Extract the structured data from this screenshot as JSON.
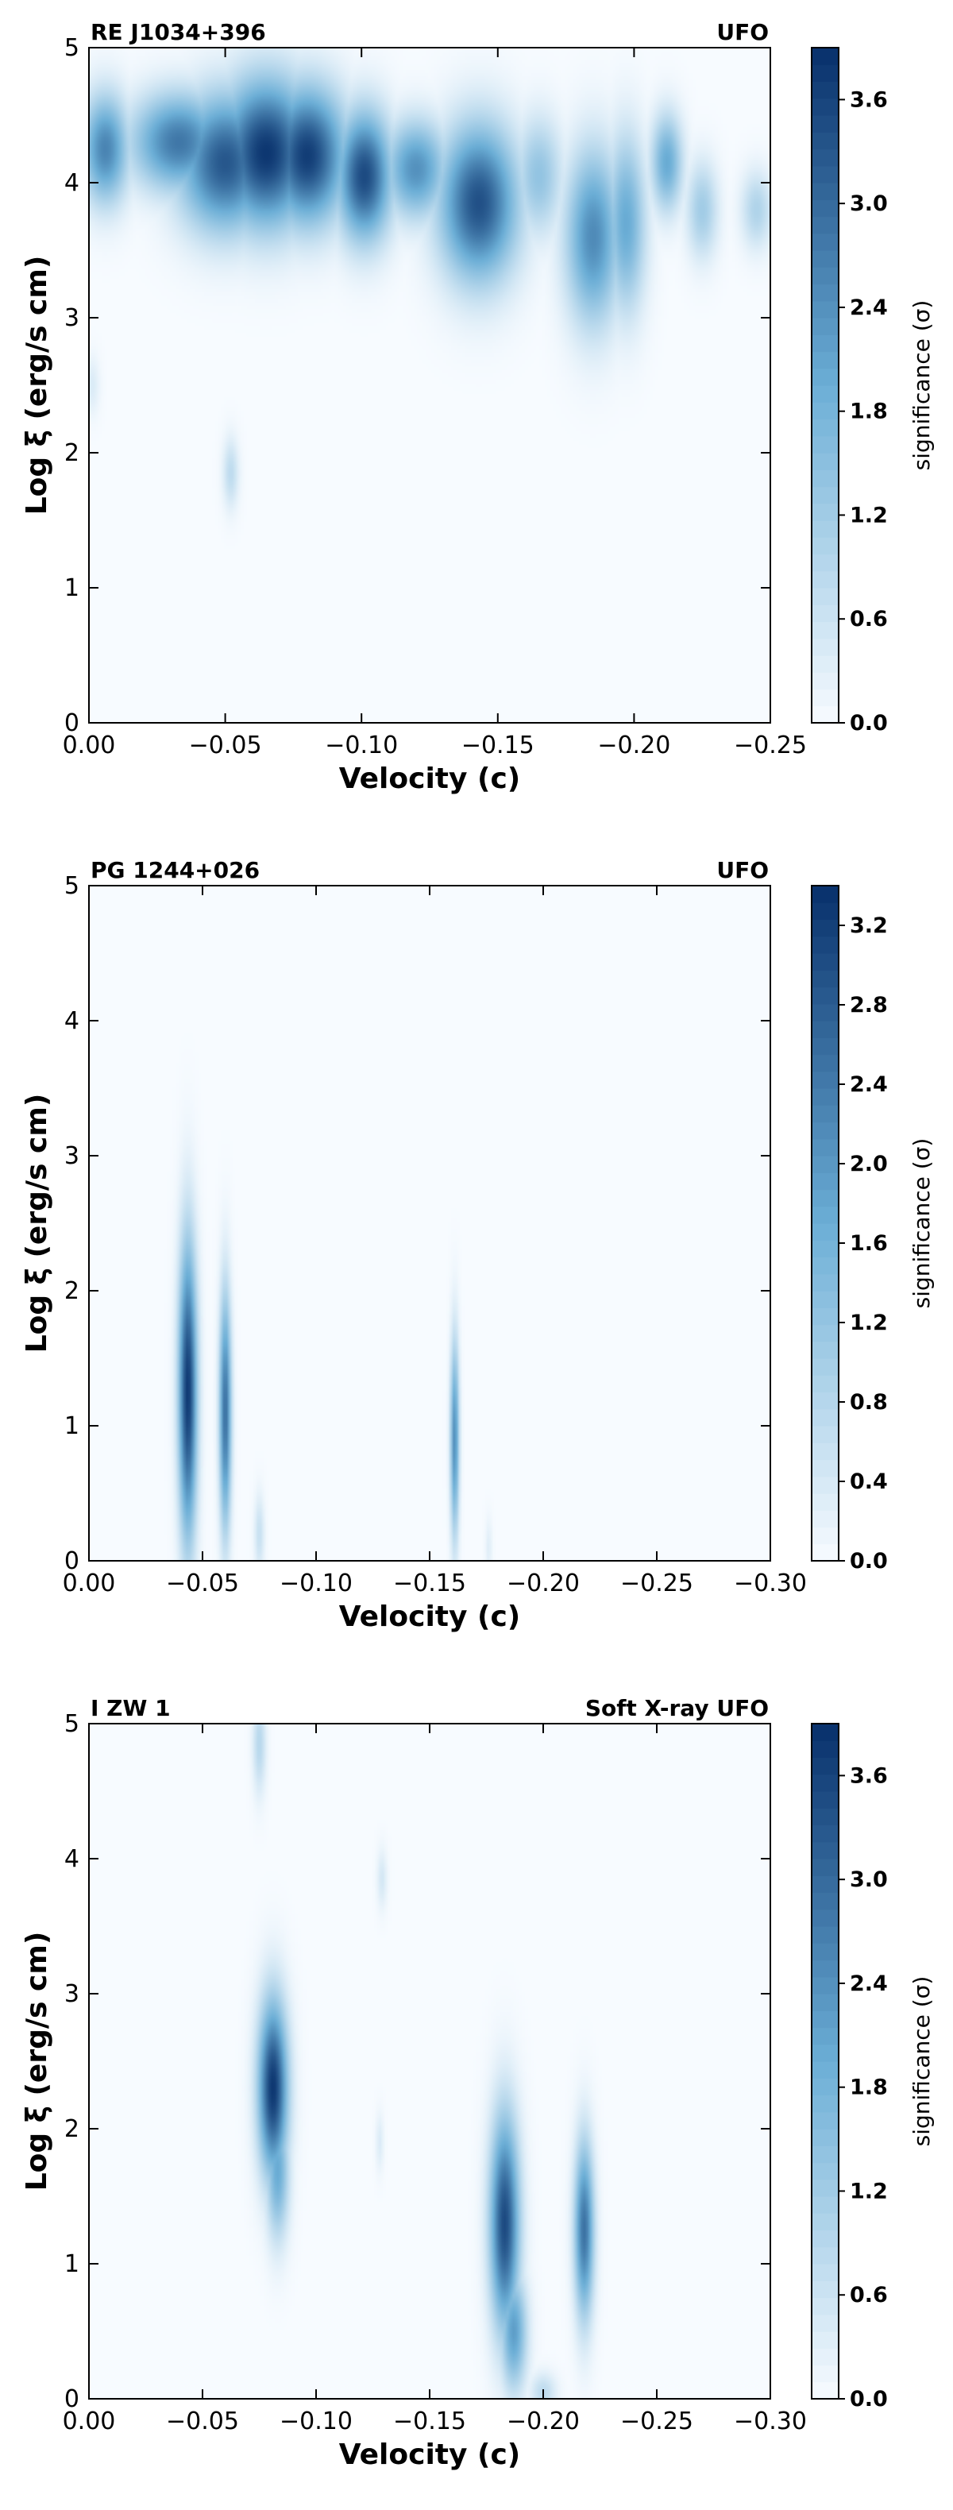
{
  "colormap": {
    "name": "Blues",
    "low_color": "#f7fbff",
    "mid_color": "#6baed6",
    "high_color": "#08306b"
  },
  "chart_data": [
    {
      "type": "heatmap",
      "source_label": "RE J1034+396",
      "class_label": "UFO",
      "xlabel": "Velocity (c)",
      "ylabel": "Log ξ (erg/s cm)",
      "xlim": [
        0.0,
        -0.25
      ],
      "ylim": [
        0,
        5
      ],
      "xticks": [
        0.0,
        -0.05,
        -0.1,
        -0.15,
        -0.2,
        -0.25
      ],
      "xtick_labels": [
        "0.00",
        "−0.05",
        "−0.10",
        "−0.15",
        "−0.20",
        "−0.25"
      ],
      "yticks": [
        0,
        1,
        2,
        3,
        4,
        5
      ],
      "ytick_labels": [
        "0",
        "1",
        "2",
        "3",
        "4",
        "5"
      ],
      "colorbar": {
        "label": "significance (σ)",
        "min": 0.0,
        "max": 3.9,
        "ticks": [
          0.0,
          0.6,
          1.2,
          1.8,
          2.4,
          3.0,
          3.6
        ],
        "tick_labels": [
          "0.0",
          "0.6",
          "1.2",
          "1.8",
          "2.4",
          "3.0",
          "3.6"
        ]
      },
      "features": [
        {
          "v": -0.006,
          "logxi": 4.25,
          "sv": 0.006,
          "sx": 0.28,
          "sig": 2.6
        },
        {
          "v": -0.033,
          "logxi": 4.3,
          "sv": 0.012,
          "sx": 0.25,
          "sig": 2.8
        },
        {
          "v": -0.05,
          "logxi": 4.15,
          "sv": 0.012,
          "sx": 0.35,
          "sig": 3.3
        },
        {
          "v": -0.065,
          "logxi": 4.22,
          "sv": 0.012,
          "sx": 0.38,
          "sig": 3.8
        },
        {
          "v": -0.08,
          "logxi": 4.2,
          "sv": 0.01,
          "sx": 0.35,
          "sig": 3.7
        },
        {
          "v": -0.101,
          "logxi": 4.05,
          "sv": 0.007,
          "sx": 0.33,
          "sig": 3.5
        },
        {
          "v": -0.12,
          "logxi": 4.1,
          "sv": 0.008,
          "sx": 0.25,
          "sig": 2.4
        },
        {
          "v": -0.143,
          "logxi": 3.85,
          "sv": 0.01,
          "sx": 0.4,
          "sig": 3.4
        },
        {
          "v": -0.165,
          "logxi": 4.05,
          "sv": 0.006,
          "sx": 0.3,
          "sig": 1.4
        },
        {
          "v": -0.185,
          "logxi": 3.6,
          "sv": 0.007,
          "sx": 0.45,
          "sig": 2.5
        },
        {
          "v": -0.197,
          "logxi": 3.7,
          "sv": 0.005,
          "sx": 0.45,
          "sig": 2.0
        },
        {
          "v": -0.212,
          "logxi": 4.15,
          "sv": 0.004,
          "sx": 0.25,
          "sig": 2.0
        },
        {
          "v": -0.225,
          "logxi": 3.8,
          "sv": 0.004,
          "sx": 0.25,
          "sig": 1.2
        },
        {
          "v": -0.245,
          "logxi": 3.8,
          "sv": 0.004,
          "sx": 0.2,
          "sig": 1.0
        },
        {
          "v": -0.052,
          "logxi": 1.85,
          "sv": 0.002,
          "sx": 0.18,
          "sig": 0.8
        },
        {
          "v": -0.001,
          "logxi": 2.5,
          "sv": 0.002,
          "sx": 0.15,
          "sig": 0.4
        }
      ]
    },
    {
      "type": "heatmap",
      "source_label": "PG 1244+026",
      "class_label": "UFO",
      "xlabel": "Velocity (c)",
      "ylabel": "Log ξ (erg/s cm)",
      "xlim": [
        0.0,
        -0.3
      ],
      "ylim": [
        0,
        5
      ],
      "xticks": [
        0.0,
        -0.05,
        -0.1,
        -0.15,
        -0.2,
        -0.25,
        -0.3
      ],
      "xtick_labels": [
        "0.00",
        "−0.05",
        "−0.10",
        "−0.15",
        "−0.20",
        "−0.25",
        "−0.30"
      ],
      "yticks": [
        0,
        1,
        2,
        3,
        4,
        5
      ],
      "ytick_labels": [
        "0",
        "1",
        "2",
        "3",
        "4",
        "5"
      ],
      "colorbar": {
        "label": "significance (σ)",
        "min": 0.0,
        "max": 3.4,
        "ticks": [
          0.0,
          0.4,
          0.8,
          1.2,
          1.6,
          2.0,
          2.4,
          2.8,
          3.2
        ],
        "tick_labels": [
          "0.0",
          "0.4",
          "0.8",
          "1.2",
          "1.6",
          "2.0",
          "2.4",
          "2.8",
          "3.2"
        ]
      },
      "features": [
        {
          "v": -0.0435,
          "logxi": 1.25,
          "sv": 0.0028,
          "sx": 0.75,
          "sig": 3.3
        },
        {
          "v": -0.06,
          "logxi": 1.1,
          "sv": 0.0018,
          "sx": 0.6,
          "sig": 2.6
        },
        {
          "v": -0.075,
          "logxi": 0.2,
          "sv": 0.0015,
          "sx": 0.2,
          "sig": 0.6
        },
        {
          "v": -0.161,
          "logxi": 0.9,
          "sv": 0.0013,
          "sx": 0.5,
          "sig": 2.2
        },
        {
          "v": -0.176,
          "logxi": 0.1,
          "sv": 0.001,
          "sx": 0.15,
          "sig": 0.3
        }
      ]
    },
    {
      "type": "heatmap",
      "source_label": "I ZW 1",
      "class_label": "Soft X-ray UFO",
      "xlabel": "Velocity (c)",
      "ylabel": "Log ξ (erg/s cm)",
      "xlim": [
        0.0,
        -0.3
      ],
      "ylim": [
        0,
        5
      ],
      "xticks": [
        0.0,
        -0.05,
        -0.1,
        -0.15,
        -0.2,
        -0.25,
        -0.3
      ],
      "xtick_labels": [
        "0.00",
        "−0.05",
        "−0.10",
        "−0.15",
        "−0.20",
        "−0.25",
        "−0.30"
      ],
      "yticks": [
        0,
        1,
        2,
        3,
        4,
        5
      ],
      "ytick_labels": [
        "0",
        "1",
        "2",
        "3",
        "4",
        "5"
      ],
      "colorbar": {
        "label": "significance (σ)",
        "min": 0.0,
        "max": 3.9,
        "ticks": [
          0.0,
          0.6,
          1.2,
          1.8,
          2.4,
          3.0,
          3.6
        ],
        "tick_labels": [
          "0.0",
          "0.6",
          "1.2",
          "1.8",
          "2.4",
          "3.0",
          "3.6"
        ]
      },
      "features": [
        {
          "v": -0.075,
          "logxi": 4.85,
          "sv": 0.002,
          "sx": 0.25,
          "sig": 0.9
        },
        {
          "v": -0.081,
          "logxi": 2.3,
          "sv": 0.0045,
          "sx": 0.45,
          "sig": 3.8
        },
        {
          "v": -0.083,
          "logxi": 1.7,
          "sv": 0.0035,
          "sx": 0.35,
          "sig": 2.0
        },
        {
          "v": -0.129,
          "logxi": 3.85,
          "sv": 0.0015,
          "sx": 0.15,
          "sig": 0.5
        },
        {
          "v": -0.128,
          "logxi": 1.9,
          "sv": 0.0012,
          "sx": 0.15,
          "sig": 0.4
        },
        {
          "v": -0.183,
          "logxi": 1.3,
          "sv": 0.0045,
          "sx": 0.55,
          "sig": 3.5
        },
        {
          "v": -0.187,
          "logxi": 0.5,
          "sv": 0.004,
          "sx": 0.3,
          "sig": 2.2
        },
        {
          "v": -0.218,
          "logxi": 1.25,
          "sv": 0.003,
          "sx": 0.45,
          "sig": 2.9
        },
        {
          "v": -0.2,
          "logxi": 0.05,
          "sv": 0.004,
          "sx": 0.1,
          "sig": 0.8
        }
      ]
    }
  ]
}
